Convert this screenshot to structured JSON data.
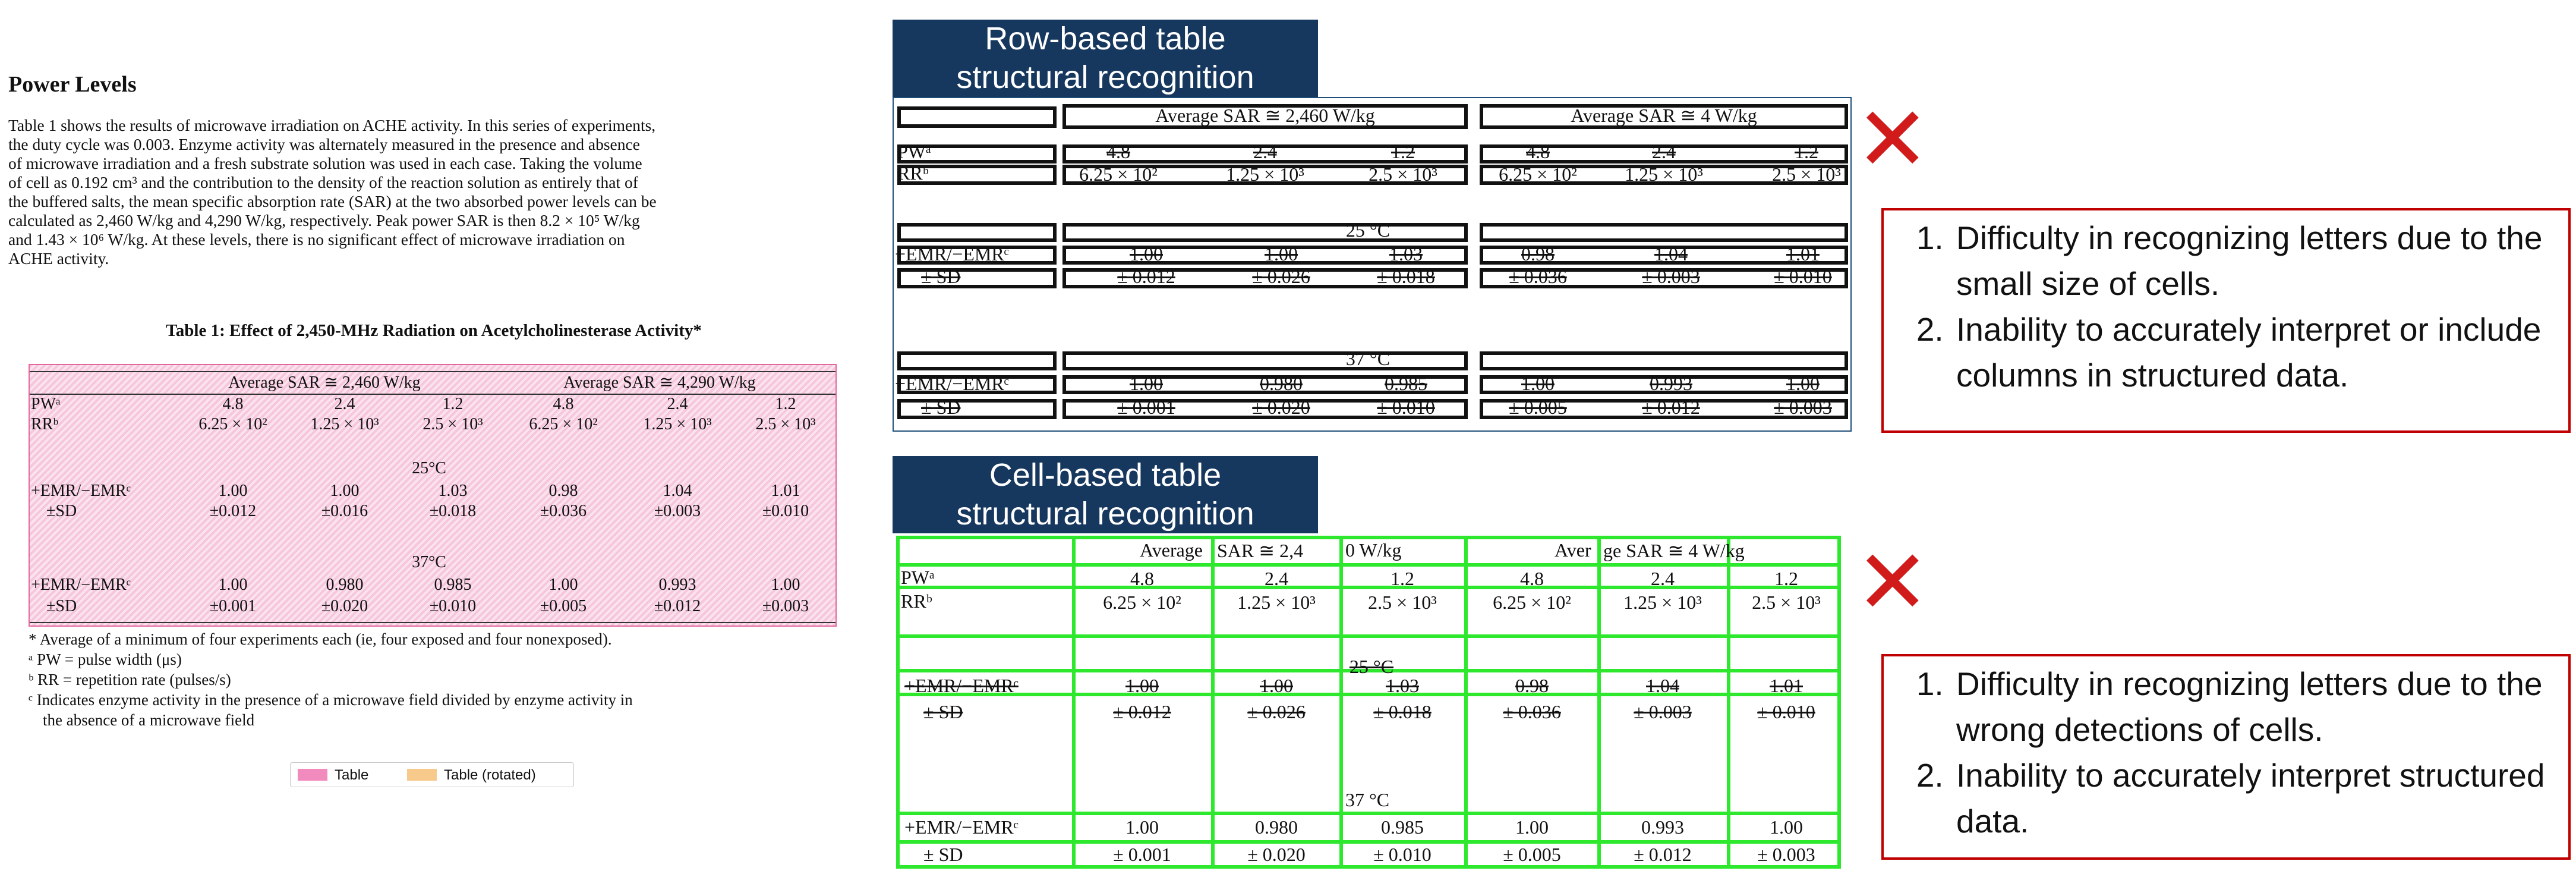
{
  "paper": {
    "section_title": "Power Levels",
    "para_lines": [
      "Table 1 shows the results of microwave irradiation on ACHE activity.  In this series of experiments,",
      "the duty cycle was 0.003.  Enzyme activity was alternately measured in the presence and absence",
      "of microwave irradiation and a fresh substrate solution was used in each case.  Taking the volume",
      "of cell as 0.192 cm³ and the contribution to the density of the reaction solution as entirely that of",
      "the buffered salts, the mean specific absorption rate (SAR) at the two absorbed power levels can be",
      "calculated as 2,460 W/kg and 4,290 W/kg, respectively.  Peak power SAR is then 8.2 × 10⁵ W/kg",
      "and 1.43 × 10⁶ W/kg.  At these levels, there is no significant effect of microwave irradiation on",
      "ACHE activity."
    ],
    "table_caption": "Table 1:  Effect of 2,450-MHz Radiation on Acetylcholinesterase Activity*",
    "table": {
      "group_headers": [
        "Average SAR ≅ 2,460 W/kg",
        "Average SAR ≅ 4,290 W/kg"
      ],
      "pw_label": "PWᵃ",
      "rr_label": "RRᵇ",
      "pw": [
        "4.8",
        "2.4",
        "1.2",
        "4.8",
        "2.4",
        "1.2"
      ],
      "rr": [
        "6.25 × 10²",
        "1.25 × 10³",
        "2.5 × 10³",
        "6.25 × 10²",
        "1.25 × 10³",
        "2.5 × 10³"
      ],
      "temp1": "25°C",
      "temp2": "37°C",
      "emr_label": "+EMR/−EMRᶜ",
      "sd_label": "±SD",
      "emr_25": [
        "1.00",
        "1.00",
        "1.03",
        "0.98",
        "1.04",
        "1.01"
      ],
      "sd_25": [
        "±0.012",
        "±0.016",
        "±0.018",
        "±0.036",
        "±0.003",
        "±0.010"
      ],
      "emr_37": [
        "1.00",
        "0.980",
        "0.985",
        "1.00",
        "0.993",
        "1.00"
      ],
      "sd_37": [
        "±0.001",
        "±0.020",
        "±0.010",
        "±0.005",
        "±0.012",
        "±0.003"
      ]
    },
    "footnotes": [
      "* Average of a minimum of four experiments each (ie, four exposed and four nonexposed).",
      "ᵃ PW = pulse width (μs)",
      "ᵇ RR = repetition rate (pulses/s)",
      "ᶜ Indicates enzyme activity in the presence of a microwave field divided by enzyme activity in",
      "   the absence of a microwave field"
    ],
    "legend": [
      {
        "label": "Table",
        "color": "#f28bbd"
      },
      {
        "label": "Table (rotated)",
        "color": "#f7c98b"
      }
    ]
  },
  "row_panel": {
    "header_lines": [
      "Row-based table",
      "structural recognition"
    ],
    "group_headers": [
      "Average SAR ≅ 2,460 W/kg",
      "Average SAR ≅ 4 W/kg"
    ],
    "pw_label": "PWᵃ",
    "rr_label": "RRᵇ",
    "pw": [
      "4.8",
      "2.4",
      "1.2",
      "4.8",
      "2.4",
      "1.2"
    ],
    "rr": [
      "6.25 × 10²",
      "1.25 × 10³",
      "2.5 × 10³",
      "6.25 × 10²",
      "1.25 × 10³",
      "2.5 × 10³"
    ],
    "temp1": "25 °C",
    "temp2": "37 °C",
    "emr_label": "+EMR/−EMRᶜ",
    "sd_label": "± SD",
    "emr_25": [
      "1.00",
      "1.00",
      "1.03",
      "0.98",
      "1.04",
      "1.01"
    ],
    "sd_25": [
      "± 0.012",
      "± 0.026",
      "± 0.018",
      "± 0.036",
      "± 0.003",
      "± 0.010"
    ],
    "emr_37": [
      "1.00",
      "0.980",
      "0.985",
      "1.00",
      "0.993",
      "1.00"
    ],
    "sd_37": [
      "± 0.001",
      "± 0.020",
      "± 0.010",
      "± 0.005",
      "± 0.012",
      "± 0.003"
    ],
    "mark": "✕",
    "notes": [
      "Difficulty in recognizing letters due to the small size of cells.",
      "Inability to accurately interpret or include columns in structured data."
    ]
  },
  "cell_panel": {
    "header_lines": [
      "Cell-based table",
      "structural recognition"
    ],
    "header_frags": [
      "Average",
      "SAR ≅ 2,4",
      "0 W/kg",
      "Aver",
      "ge SAR ≅ 4 W/kg"
    ],
    "pw_label": "PWᵃ",
    "rr_label": "RRᵇ",
    "pw": [
      "4.8",
      "2.4",
      "1.2",
      "4.8",
      "2.4",
      "1.2"
    ],
    "rr": [
      "6.25 × 10²",
      "1.25 × 10³",
      "2.5 × 10³",
      "6.25 × 10²",
      "1.25 × 10³",
      "2.5 × 10³"
    ],
    "temp1": "25 °C",
    "temp2": "37 °C",
    "emr_label": "+EMR/−EMRᶜ",
    "sd_label": "± SD",
    "emr_25": [
      "1.00",
      "1.00",
      "1.03",
      "0.98",
      "1.04",
      "1.01"
    ],
    "sd_25": [
      "± 0.012",
      "± 0.026",
      "± 0.018",
      "± 0.036",
      "± 0.003",
      "± 0.010"
    ],
    "emr_37": [
      "1.00",
      "0.980",
      "0.985",
      "1.00",
      "0.993",
      "1.00"
    ],
    "sd_37": [
      "± 0.001",
      "± 0.020",
      "± 0.010",
      "± 0.005",
      "± 0.012",
      "± 0.003"
    ],
    "mark": "✕",
    "notes": [
      "Difficulty in recognizing letters due to the wrong detections of cells.",
      "Inability to accurately interpret structured data."
    ]
  }
}
